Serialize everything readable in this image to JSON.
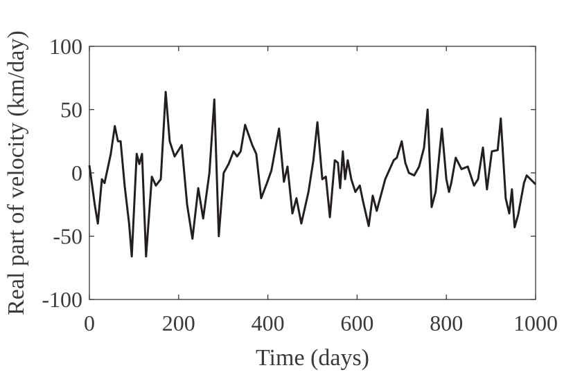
{
  "chart_data": {
    "type": "line",
    "xlabel": "Time (days)",
    "ylabel": "Real part of velocity (km/day)",
    "xlim": [
      0,
      1000
    ],
    "xticks": [
      0,
      200,
      400,
      600,
      800,
      1000
    ],
    "ylim": [
      -100,
      100
    ],
    "yticks": [
      -100,
      -50,
      0,
      50,
      100
    ],
    "series": [
      {
        "color": "#231f20",
        "x": [
          0,
          12,
          19,
          28,
          34,
          48,
          57,
          64,
          70,
          79,
          89,
          95,
          106,
          112,
          118,
          127,
          140,
          149,
          160,
          171,
          180,
          191,
          207,
          219,
          231,
          244,
          255,
          269,
          280,
          290,
          301,
          312,
          323,
          331,
          339,
          349,
          365,
          374,
          385,
          398,
          408,
          425,
          436,
          444,
          455,
          464,
          475,
          491,
          502,
          511,
          522,
          530,
          539,
          550,
          557,
          562,
          568,
          573,
          579,
          587,
          596,
          606,
          613,
          626,
          635,
          644,
          663,
          682,
          689,
          700,
          708,
          716,
          728,
          739,
          750,
          758,
          767,
          776,
          790,
          800,
          806,
          811,
          821,
          834,
          848,
          862,
          871,
          882,
          891,
          902,
          915,
          922,
          933,
          941,
          947,
          953,
          961,
          974,
          980,
          1000
        ],
        "values": [
          6,
          -25,
          -40,
          -5,
          -8,
          15,
          37,
          25,
          25,
          -10,
          -40,
          -66,
          15,
          7,
          15,
          -66,
          -3,
          -10,
          -5,
          64,
          25,
          13,
          22,
          -25,
          -52,
          -12,
          -36,
          0,
          58,
          -50,
          0,
          7,
          17,
          13,
          17,
          38,
          22,
          15,
          -20,
          -8,
          2,
          35,
          -7,
          5,
          -32,
          -20,
          -40,
          -15,
          10,
          40,
          -5,
          -3,
          -35,
          10,
          8,
          -12,
          17,
          -5,
          10,
          -5,
          -15,
          -10,
          -22,
          -42,
          -18,
          -30,
          -5,
          10,
          12,
          25,
          8,
          0,
          -2,
          5,
          20,
          50,
          -27,
          -15,
          35,
          -5,
          -15,
          -8,
          12,
          3,
          5,
          -10,
          -5,
          20,
          -13,
          17,
          18,
          43,
          -20,
          -32,
          -13,
          -43,
          -33,
          -8,
          -2,
          -9
        ]
      }
    ]
  }
}
